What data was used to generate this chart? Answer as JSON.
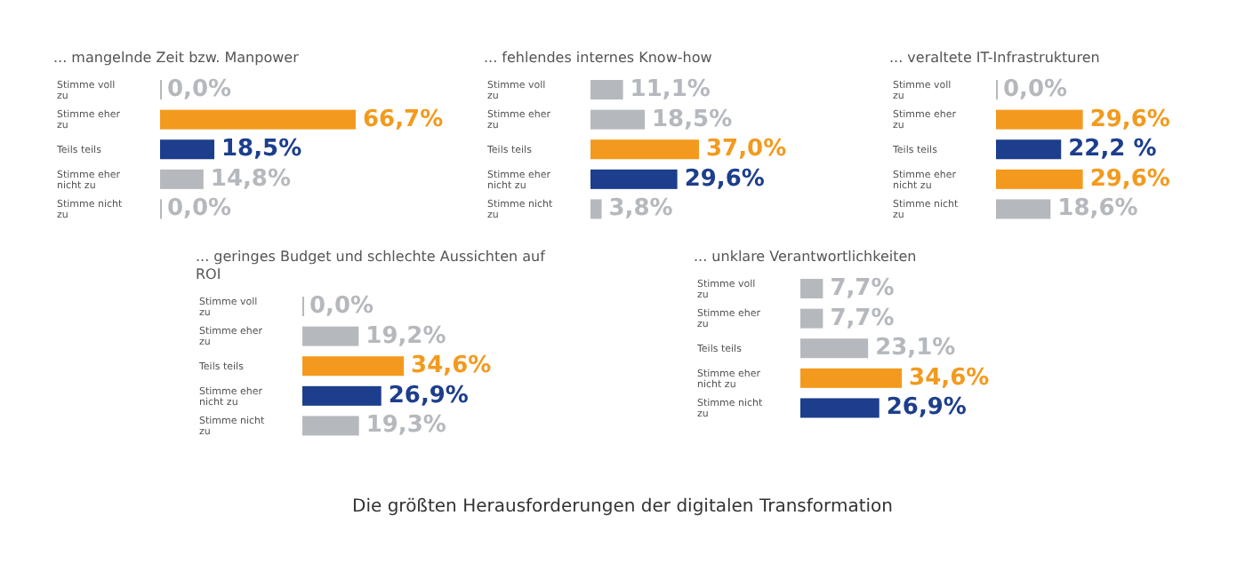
{
  "chart_data": [
    {
      "type": "bar",
      "orientation": "horizontal",
      "title": "... mangelnde Zeit bzw. Manpower",
      "categories": [
        "Stimme voll zu",
        "Stimme eher zu",
        "Teils teils",
        "Stimme eher nicht zu",
        "Stimme nicht zu"
      ],
      "values": [
        0.0,
        66.7,
        18.5,
        14.8,
        0.0
      ],
      "colors": [
        "#b5b9be",
        "#f39a1e",
        "#1d3e8c",
        "#b5b9be",
        "#b5b9be"
      ],
      "value_labels": [
        "0,0%",
        "66,7%",
        "18,5%",
        "14,8%",
        "0,0%"
      ]
    },
    {
      "type": "bar",
      "orientation": "horizontal",
      "title": "... fehlendes internes Know-how",
      "categories": [
        "Stimme voll zu",
        "Stimme eher zu",
        "Teils teils",
        "Stimme eher nicht zu",
        "Stimme nicht zu"
      ],
      "values": [
        11.1,
        18.5,
        37.0,
        29.6,
        3.8
      ],
      "colors": [
        "#b5b9be",
        "#b5b9be",
        "#f39a1e",
        "#1d3e8c",
        "#b5b9be"
      ],
      "value_labels": [
        "11,1%",
        "18,5%",
        "37,0%",
        "29,6%",
        "3,8%"
      ]
    },
    {
      "type": "bar",
      "orientation": "horizontal",
      "title": "... veraltete IT-Infrastrukturen",
      "categories": [
        "Stimme voll zu",
        "Stimme eher zu",
        "Teils teils",
        "Stimme eher nicht zu",
        "Stimme nicht zu"
      ],
      "values": [
        0.0,
        29.6,
        22.2,
        29.6,
        18.6
      ],
      "colors": [
        "#b5b9be",
        "#f39a1e",
        "#1d3e8c",
        "#f39a1e",
        "#b5b9be"
      ],
      "value_labels": [
        "0,0%",
        "29,6%",
        "22,2 %",
        "29,6%",
        "18,6%"
      ]
    },
    {
      "type": "bar",
      "orientation": "horizontal",
      "title": "... geringes Budget und schlechte Aussichten auf ROI",
      "categories": [
        "Stimme voll zu",
        "Stimme eher zu",
        "Teils teils",
        "Stimme eher nicht zu",
        "Stimme nicht zu"
      ],
      "values": [
        0.0,
        19.2,
        34.6,
        26.9,
        19.3
      ],
      "colors": [
        "#b5b9be",
        "#b5b9be",
        "#f39a1e",
        "#1d3e8c",
        "#b5b9be"
      ],
      "value_labels": [
        "0,0%",
        "19,2%",
        "34,6%",
        "26,9%",
        "19,3%"
      ]
    },
    {
      "type": "bar",
      "orientation": "horizontal",
      "title": "... unklare Verantwortlichkeiten",
      "categories": [
        "Stimme voll zu",
        "Stimme eher zu",
        "Teils teils",
        "Stimme eher nicht zu",
        "Stimme nicht zu"
      ],
      "values": [
        7.7,
        7.7,
        23.1,
        34.6,
        26.9
      ],
      "colors": [
        "#b5b9be",
        "#b5b9be",
        "#b5b9be",
        "#f39a1e",
        "#1d3e8c"
      ],
      "value_labels": [
        "7,7%",
        "7,7%",
        "23,1%",
        "34,6%",
        "26,9%"
      ],
      "annotations": [
        "Die größten Herausforderungen der digitalen Transformation"
      ]
    }
  ]
}
